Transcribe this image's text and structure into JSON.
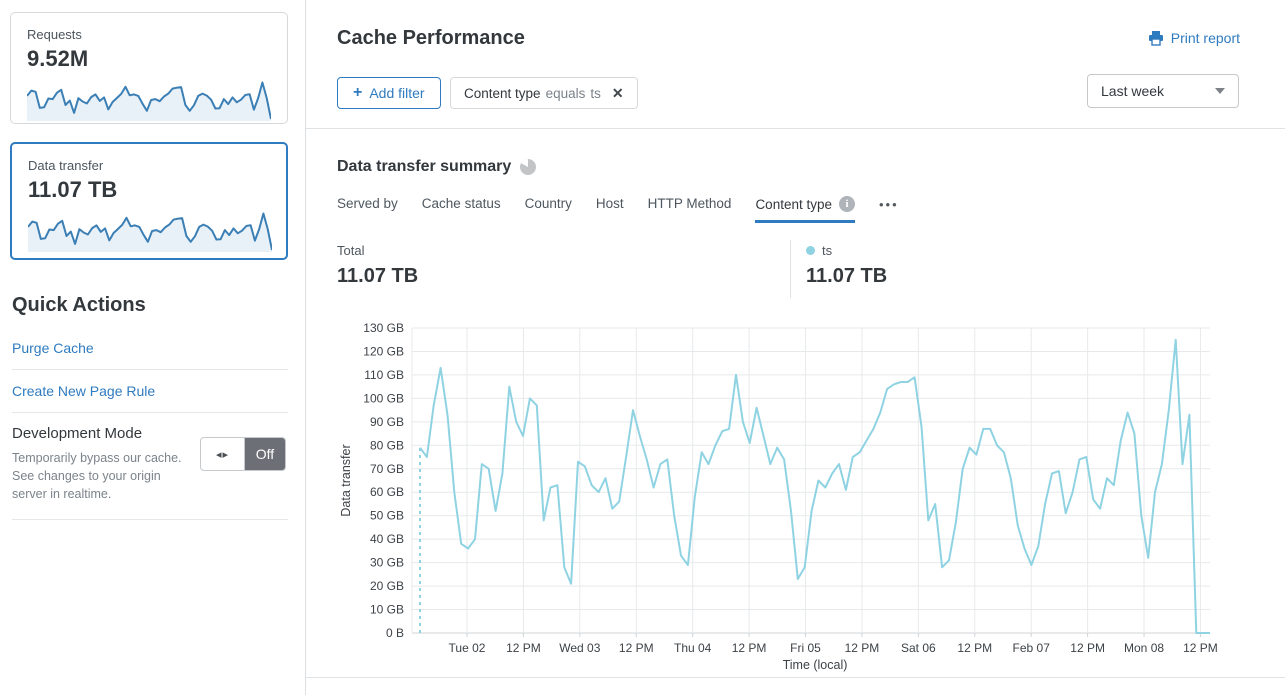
{
  "icons": {
    "toggle_arrows": "◂▸",
    "close": "✕",
    "plus": "+",
    "more": "•••"
  },
  "colors": {
    "accent_blue": "#2f7bbf",
    "line_blue": "#8fd3e3",
    "spark_stroke": "#3b7fb5",
    "spark_fill": "#e9f1f8"
  },
  "sidebar": {
    "cards": [
      {
        "label": "Requests",
        "value": "9.52M",
        "spark": [
          79,
          97,
          93,
          38,
          40,
          70,
          68,
          90,
          100,
          48,
          63,
          21,
          71,
          60,
          53,
          75,
          84,
          62,
          74,
          33,
          58,
          72,
          86,
          110,
          81,
          84,
          79,
          52,
          28,
          65,
          68,
          61,
          77,
          87,
          104,
          107,
          109,
          48,
          28,
          47,
          79,
          87,
          80,
          66,
          36,
          37,
          68,
          51,
          74,
          57,
          66,
          82,
          85,
          32,
          72,
          125,
          72,
          0
        ]
      },
      {
        "label": "Data transfer",
        "value": "11.07 TB",
        "selected": true,
        "spark": [
          79,
          97,
          93,
          38,
          40,
          70,
          68,
          90,
          100,
          48,
          63,
          21,
          71,
          60,
          53,
          75,
          84,
          62,
          74,
          33,
          58,
          72,
          86,
          110,
          81,
          84,
          79,
          52,
          28,
          65,
          68,
          61,
          77,
          87,
          104,
          107,
          109,
          48,
          28,
          47,
          79,
          87,
          80,
          66,
          36,
          37,
          68,
          51,
          74,
          57,
          66,
          82,
          85,
          32,
          72,
          125,
          72,
          0
        ]
      }
    ],
    "quick_actions": {
      "title": "Quick Actions",
      "links": [
        "Purge Cache",
        "Create New Page Rule"
      ]
    },
    "dev_mode": {
      "title": "Development Mode",
      "description": "Temporarily bypass our cache. See changes to your origin server in realtime.",
      "state": "Off"
    }
  },
  "header": {
    "title": "Cache Performance",
    "print_label": "Print report"
  },
  "toolbar": {
    "add_filter_label": "Add filter",
    "filter_chip": {
      "field": "Content type",
      "operator": "equals",
      "value": "ts"
    },
    "range_selected": "Last week"
  },
  "summary": {
    "title": "Data transfer summary",
    "tabs": [
      {
        "label": "Served by"
      },
      {
        "label": "Cache status"
      },
      {
        "label": "Country"
      },
      {
        "label": "Host"
      },
      {
        "label": "HTTP Method"
      },
      {
        "label": "Content type",
        "active": true,
        "info": true
      }
    ],
    "total_label": "Total",
    "total_value": "11.07 TB",
    "legend": {
      "name": "ts",
      "value": "11.07 TB",
      "color": "#8fd3e3"
    }
  },
  "chart_data": {
    "type": "line",
    "title": "Data transfer summary",
    "xlabel": "Time (local)",
    "ylabel": "Data transfer",
    "unit": "GB",
    "ylim": [
      0,
      130
    ],
    "y_ticks": [
      "0 B",
      "10 GB",
      "20 GB",
      "30 GB",
      "40 GB",
      "50 GB",
      "60 GB",
      "70 GB",
      "80 GB",
      "90 GB",
      "100 GB",
      "110 GB",
      "120 GB",
      "130 GB"
    ],
    "x_tick_labels": [
      "Tue 02",
      "12 PM",
      "Wed 03",
      "12 PM",
      "Thu 04",
      "12 PM",
      "Fri 05",
      "12 PM",
      "Sat 06",
      "12 PM",
      "Feb 07",
      "12 PM",
      "Mon 08",
      "12 PM"
    ],
    "grid": true,
    "legend_position": "top-right",
    "leading_dashed": true,
    "series": [
      {
        "name": "ts",
        "color": "#8fd3e3",
        "values": [
          79,
          75,
          97,
          113,
          93,
          60,
          38,
          36,
          40,
          72,
          70,
          52,
          68,
          105,
          90,
          84,
          100,
          97,
          48,
          62,
          63,
          28,
          21,
          73,
          71,
          63,
          60,
          66,
          53,
          56,
          75,
          95,
          84,
          74,
          62,
          72,
          74,
          50,
          33,
          29,
          58,
          77,
          72,
          80,
          86,
          87,
          110,
          90,
          81,
          96,
          84,
          72,
          79,
          74,
          52,
          23,
          28,
          52,
          65,
          62,
          68,
          72,
          61,
          75,
          77,
          82,
          87,
          94,
          104,
          106,
          107,
          107,
          109,
          88,
          48,
          55,
          28,
          31,
          47,
          70,
          79,
          76,
          87,
          87,
          80,
          77,
          66,
          46,
          36,
          29,
          37,
          55,
          68,
          69,
          51,
          60,
          74,
          75,
          57,
          53,
          66,
          63,
          82,
          94,
          85,
          50,
          32,
          60,
          72,
          95,
          125,
          72,
          93,
          0,
          0,
          0
        ]
      }
    ]
  }
}
